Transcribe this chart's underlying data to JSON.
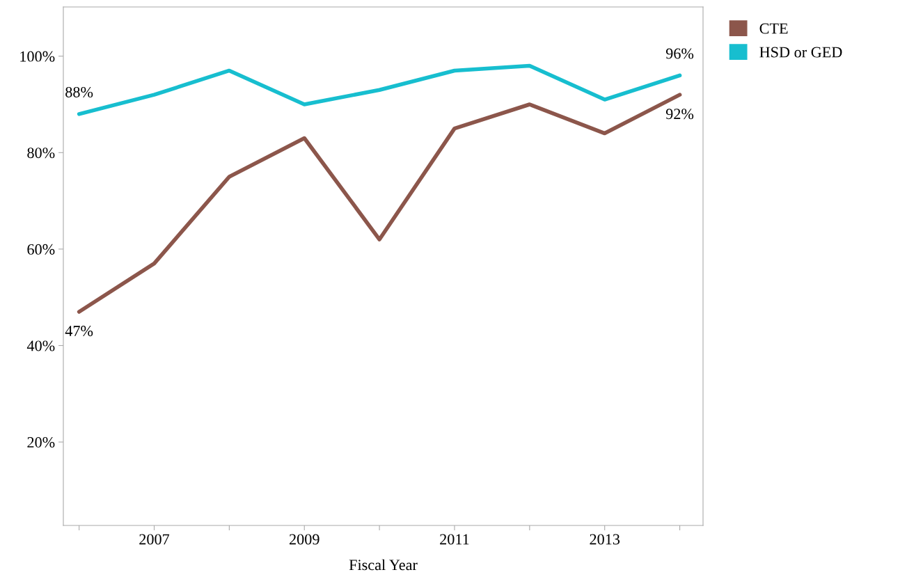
{
  "chart_data": {
    "type": "line",
    "xlabel": "Fiscal Year",
    "x": [
      2006,
      2007,
      2008,
      2009,
      2010,
      2011,
      2012,
      2013,
      2014
    ],
    "series": [
      {
        "name": "CTE",
        "color": "#8c564b",
        "values": [
          47,
          57,
          75,
          83,
          62,
          85,
          90,
          84,
          92
        ],
        "value_labels": [
          "47%",
          null,
          null,
          null,
          null,
          null,
          null,
          null,
          "92%"
        ]
      },
      {
        "name": "HSD or GED",
        "color": "#17becf",
        "values": [
          88,
          92,
          97,
          90,
          93,
          97,
          98,
          91,
          96
        ],
        "value_labels": [
          "88%",
          null,
          null,
          null,
          null,
          null,
          null,
          null,
          "96%"
        ]
      }
    ],
    "xlim": [
      2005.79,
      2014.31
    ],
    "xticks": [
      {
        "value": 2006,
        "label": null
      },
      2007,
      {
        "value": 2008,
        "label": null
      },
      2009,
      {
        "value": 2010,
        "label": null
      },
      2011,
      {
        "value": 2012,
        "label": null
      },
      2013,
      {
        "value": 2014,
        "label": null
      }
    ],
    "ylim": [
      2.7,
      110.2
    ],
    "yticks": [
      {
        "value": 20,
        "label": "20%"
      },
      {
        "value": 40,
        "label": "40%"
      },
      {
        "value": 60,
        "label": "60%"
      },
      {
        "value": 80,
        "label": "80%"
      },
      {
        "value": 100,
        "label": "100%"
      }
    ],
    "grid": false,
    "legend": "top right",
    "marker": "none",
    "line_style": "solid"
  }
}
